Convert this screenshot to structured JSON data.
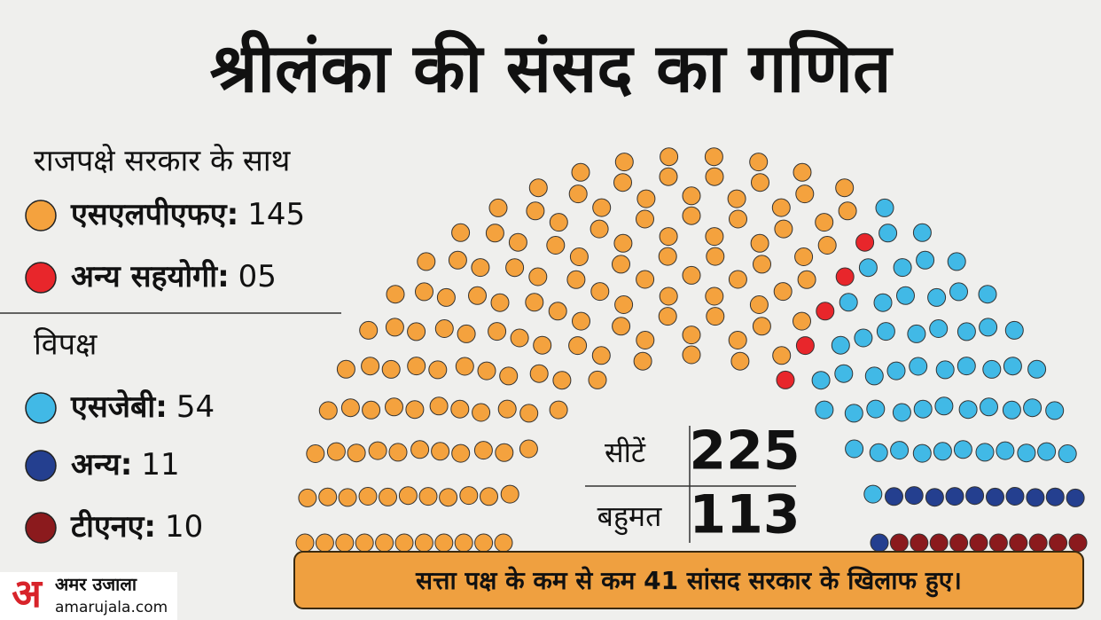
{
  "chart_data": {
    "type": "parliament",
    "title": "श्रीलंका की संसद का गणित",
    "groups": [
      {
        "title": "राजपक्षे सरकार के साथ",
        "series": [
          {
            "name": "एसएलपीएफए:",
            "color": "#f4a23e",
            "values": [
              145
            ]
          },
          {
            "name": "अन्य सहयोगी:",
            "color": "#e8262b",
            "values": [
              5
            ],
            "value_labels": [
              "05"
            ]
          }
        ]
      },
      {
        "title": "विपक्ष",
        "series": [
          {
            "name": "एसजेबी:",
            "color": "#41b9e6",
            "values": [
              54
            ]
          },
          {
            "name": "अन्य:",
            "color": "#243f8f",
            "values": [
              11
            ]
          },
          {
            "name": "टीएनए:",
            "color": "#8b1a1d",
            "values": [
              10
            ]
          }
        ]
      }
    ],
    "summary": [
      {
        "label": "सीटें",
        "value": 225
      },
      {
        "label": "बहुमत",
        "value": 113
      }
    ],
    "note": "सत्ता पक्ष के कम से कम 41 सांसद सरकार के खिलाफ हुए।"
  },
  "brand": {
    "mark": "अ",
    "name": "अमर उजाला",
    "site": "amarujala.com"
  }
}
